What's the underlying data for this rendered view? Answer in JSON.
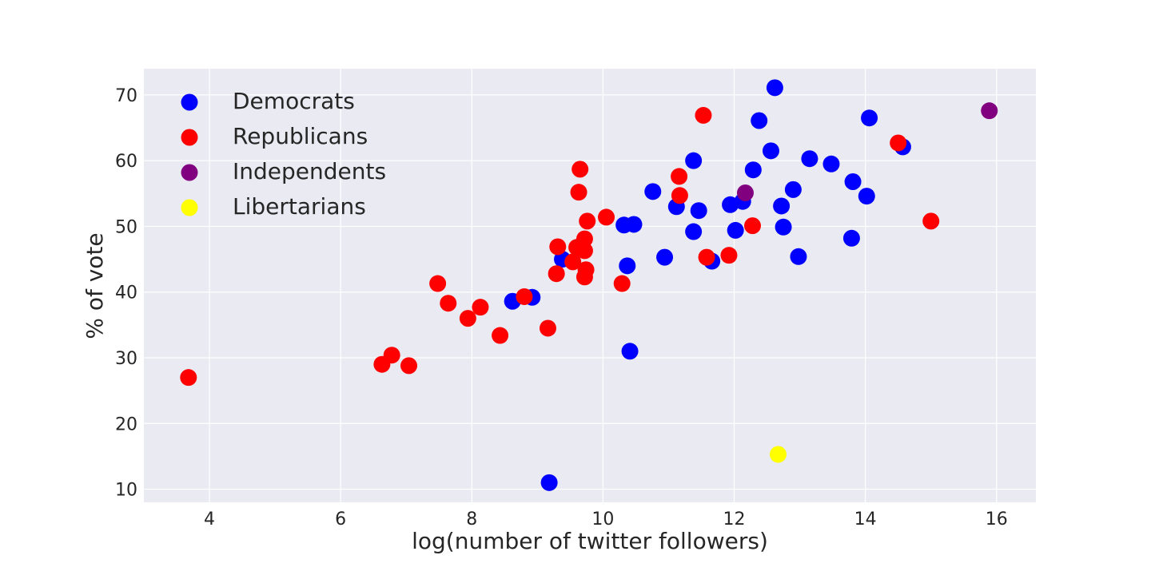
{
  "chart_data": {
    "type": "scatter",
    "title": "",
    "xlabel": "log(number of twitter followers)",
    "ylabel": "% of vote",
    "xlim": [
      3,
      16.6
    ],
    "ylim": [
      8,
      74
    ],
    "xticks": [
      4,
      6,
      8,
      10,
      12,
      14,
      16
    ],
    "yticks": [
      10,
      20,
      30,
      40,
      50,
      60,
      70
    ],
    "grid": true,
    "background": "#eaeaf2",
    "legend_position": "top-left",
    "series": [
      {
        "name": "Democrats",
        "color": "#0000ff",
        "points": [
          [
            9.18,
            11.0
          ],
          [
            10.41,
            31.0
          ],
          [
            8.62,
            38.6
          ],
          [
            8.92,
            39.2
          ],
          [
            9.38,
            45.0
          ],
          [
            10.37,
            44.0
          ],
          [
            10.32,
            50.2
          ],
          [
            10.47,
            50.3
          ],
          [
            10.76,
            55.3
          ],
          [
            10.94,
            45.3
          ],
          [
            11.12,
            53.0
          ],
          [
            11.38,
            49.2
          ],
          [
            11.38,
            60.0
          ],
          [
            11.46,
            52.4
          ],
          [
            11.66,
            44.7
          ],
          [
            11.94,
            53.3
          ],
          [
            12.02,
            49.4
          ],
          [
            12.13,
            53.8
          ],
          [
            12.29,
            58.6
          ],
          [
            12.38,
            66.1
          ],
          [
            12.56,
            61.5
          ],
          [
            12.62,
            71.1
          ],
          [
            12.72,
            53.1
          ],
          [
            12.75,
            49.9
          ],
          [
            12.9,
            55.6
          ],
          [
            12.98,
            45.4
          ],
          [
            13.15,
            60.3
          ],
          [
            13.48,
            59.5
          ],
          [
            13.79,
            48.2
          ],
          [
            13.81,
            56.8
          ],
          [
            14.02,
            54.6
          ],
          [
            14.06,
            66.5
          ],
          [
            14.57,
            62.1
          ]
        ]
      },
      {
        "name": "Republicans",
        "color": "#ff0000",
        "points": [
          [
            3.68,
            27.0
          ],
          [
            6.63,
            29.0
          ],
          [
            6.78,
            30.4
          ],
          [
            7.04,
            28.8
          ],
          [
            7.48,
            41.3
          ],
          [
            7.64,
            38.3
          ],
          [
            7.94,
            36.0
          ],
          [
            8.13,
            37.7
          ],
          [
            8.43,
            33.4
          ],
          [
            8.8,
            39.3
          ],
          [
            9.16,
            34.5
          ],
          [
            9.29,
            42.8
          ],
          [
            9.31,
            46.9
          ],
          [
            9.54,
            44.6
          ],
          [
            9.6,
            46.8
          ],
          [
            9.63,
            55.2
          ],
          [
            9.65,
            58.7
          ],
          [
            9.72,
            48.1
          ],
          [
            9.72,
            46.3
          ],
          [
            9.72,
            42.3
          ],
          [
            9.74,
            43.4
          ],
          [
            9.76,
            50.8
          ],
          [
            10.05,
            51.4
          ],
          [
            10.29,
            41.3
          ],
          [
            11.16,
            57.6
          ],
          [
            11.17,
            54.7
          ],
          [
            11.53,
            66.9
          ],
          [
            11.58,
            45.3
          ],
          [
            11.92,
            45.6
          ],
          [
            12.28,
            50.1
          ],
          [
            14.5,
            62.7
          ],
          [
            15.0,
            50.8
          ]
        ]
      },
      {
        "name": "Independents",
        "color": "#800080",
        "points": [
          [
            12.17,
            55.1
          ],
          [
            15.89,
            67.6
          ]
        ]
      },
      {
        "name": "Libertarians",
        "color": "#ffff00",
        "points": [
          [
            12.67,
            15.3
          ]
        ]
      }
    ]
  }
}
